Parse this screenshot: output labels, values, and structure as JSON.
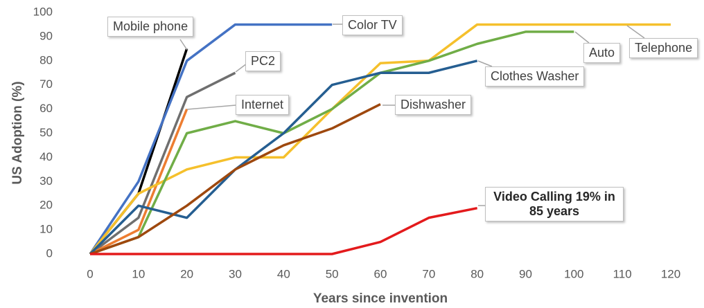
{
  "chart_data": {
    "type": "line",
    "xlabel": "Years since invention",
    "ylabel": "US Adoption (%)",
    "xlim": [
      0,
      120
    ],
    "xticks": [
      0,
      10,
      20,
      30,
      40,
      50,
      60,
      70,
      80,
      90,
      100,
      110,
      120
    ],
    "ylim": [
      0,
      100
    ],
    "yticks": [
      0,
      10,
      20,
      30,
      40,
      50,
      60,
      70,
      80,
      90,
      100
    ],
    "grid": false,
    "series": [
      {
        "name": "Mobile phone",
        "color": "#000000",
        "x": [
          0,
          10,
          20
        ],
        "values": [
          0,
          25,
          85
        ]
      },
      {
        "name": "Color TV",
        "color": "#4472c4",
        "x": [
          0,
          10,
          20,
          30,
          50
        ],
        "values": [
          0,
          30,
          80,
          95,
          95
        ]
      },
      {
        "name": "PC2",
        "color": "#6f6f6f",
        "x": [
          0,
          10,
          20,
          30
        ],
        "values": [
          0,
          15,
          65,
          75
        ]
      },
      {
        "name": "Internet",
        "color": "#ed7d31",
        "x": [
          0,
          10,
          20
        ],
        "values": [
          0,
          10,
          60
        ]
      },
      {
        "name": "Telephone",
        "color": "#f5c02c",
        "x": [
          0,
          10,
          20,
          30,
          40,
          50,
          60,
          70,
          80,
          90,
          100,
          110,
          120
        ],
        "values": [
          0,
          25,
          35,
          40,
          40,
          60,
          79,
          80,
          95,
          95,
          95,
          95,
          95
        ]
      },
      {
        "name": "Auto",
        "color": "#70ad47",
        "x": [
          0,
          10,
          20,
          30,
          40,
          50,
          60,
          70,
          80,
          90,
          100
        ],
        "values": [
          0,
          7,
          50,
          55,
          50,
          60,
          75,
          80,
          87,
          92,
          92
        ]
      },
      {
        "name": "Clothes Washer",
        "color": "#255e91",
        "x": [
          0,
          10,
          20,
          30,
          40,
          50,
          60,
          70,
          80
        ],
        "values": [
          0,
          20,
          15,
          35,
          50,
          70,
          75,
          75,
          80
        ]
      },
      {
        "name": "Dishwasher",
        "color": "#9e480e",
        "x": [
          0,
          10,
          20,
          30,
          40,
          50,
          60
        ],
        "values": [
          0,
          7,
          20,
          35,
          45,
          52,
          62
        ]
      },
      {
        "name": "Video Calling 19% in 85 years",
        "color": "#e31a1c",
        "x": [
          0,
          50,
          60,
          70,
          80
        ],
        "values": [
          0,
          0,
          5,
          15,
          19
        ]
      }
    ]
  }
}
